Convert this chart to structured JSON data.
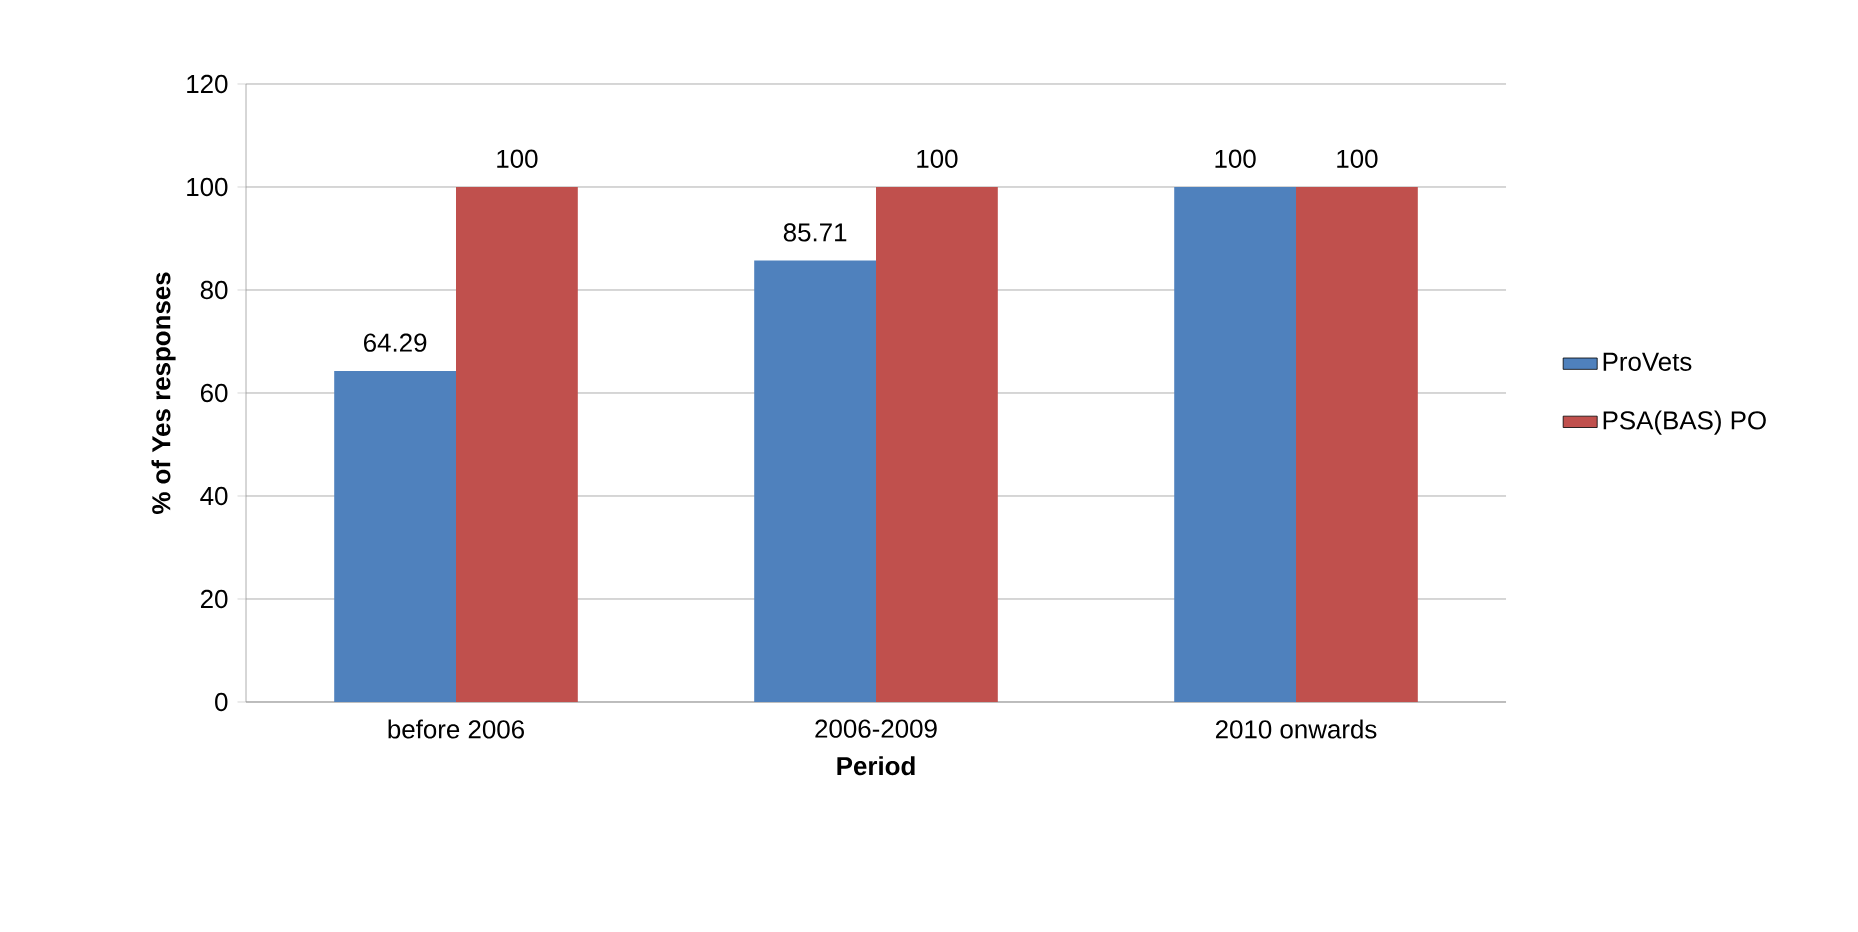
{
  "chart_data": {
    "type": "bar",
    "xlabel": "Period",
    "ylabel": "% of Yes responses",
    "categories": [
      "before 2006",
      "2006-2009",
      "2010 onwards"
    ],
    "series": [
      {
        "name": "ProVets",
        "color": "#4f81bd",
        "values": [
          64.29,
          85.71,
          100
        ]
      },
      {
        "name": "PSA(BAS) PO",
        "color": "#c0504d",
        "values": [
          100,
          100,
          100
        ]
      }
    ],
    "ylim": [
      0,
      120
    ],
    "yticks": [
      0,
      20,
      40,
      60,
      80,
      100,
      120
    ],
    "grid": "y",
    "legend": "right",
    "data_labels": true
  }
}
